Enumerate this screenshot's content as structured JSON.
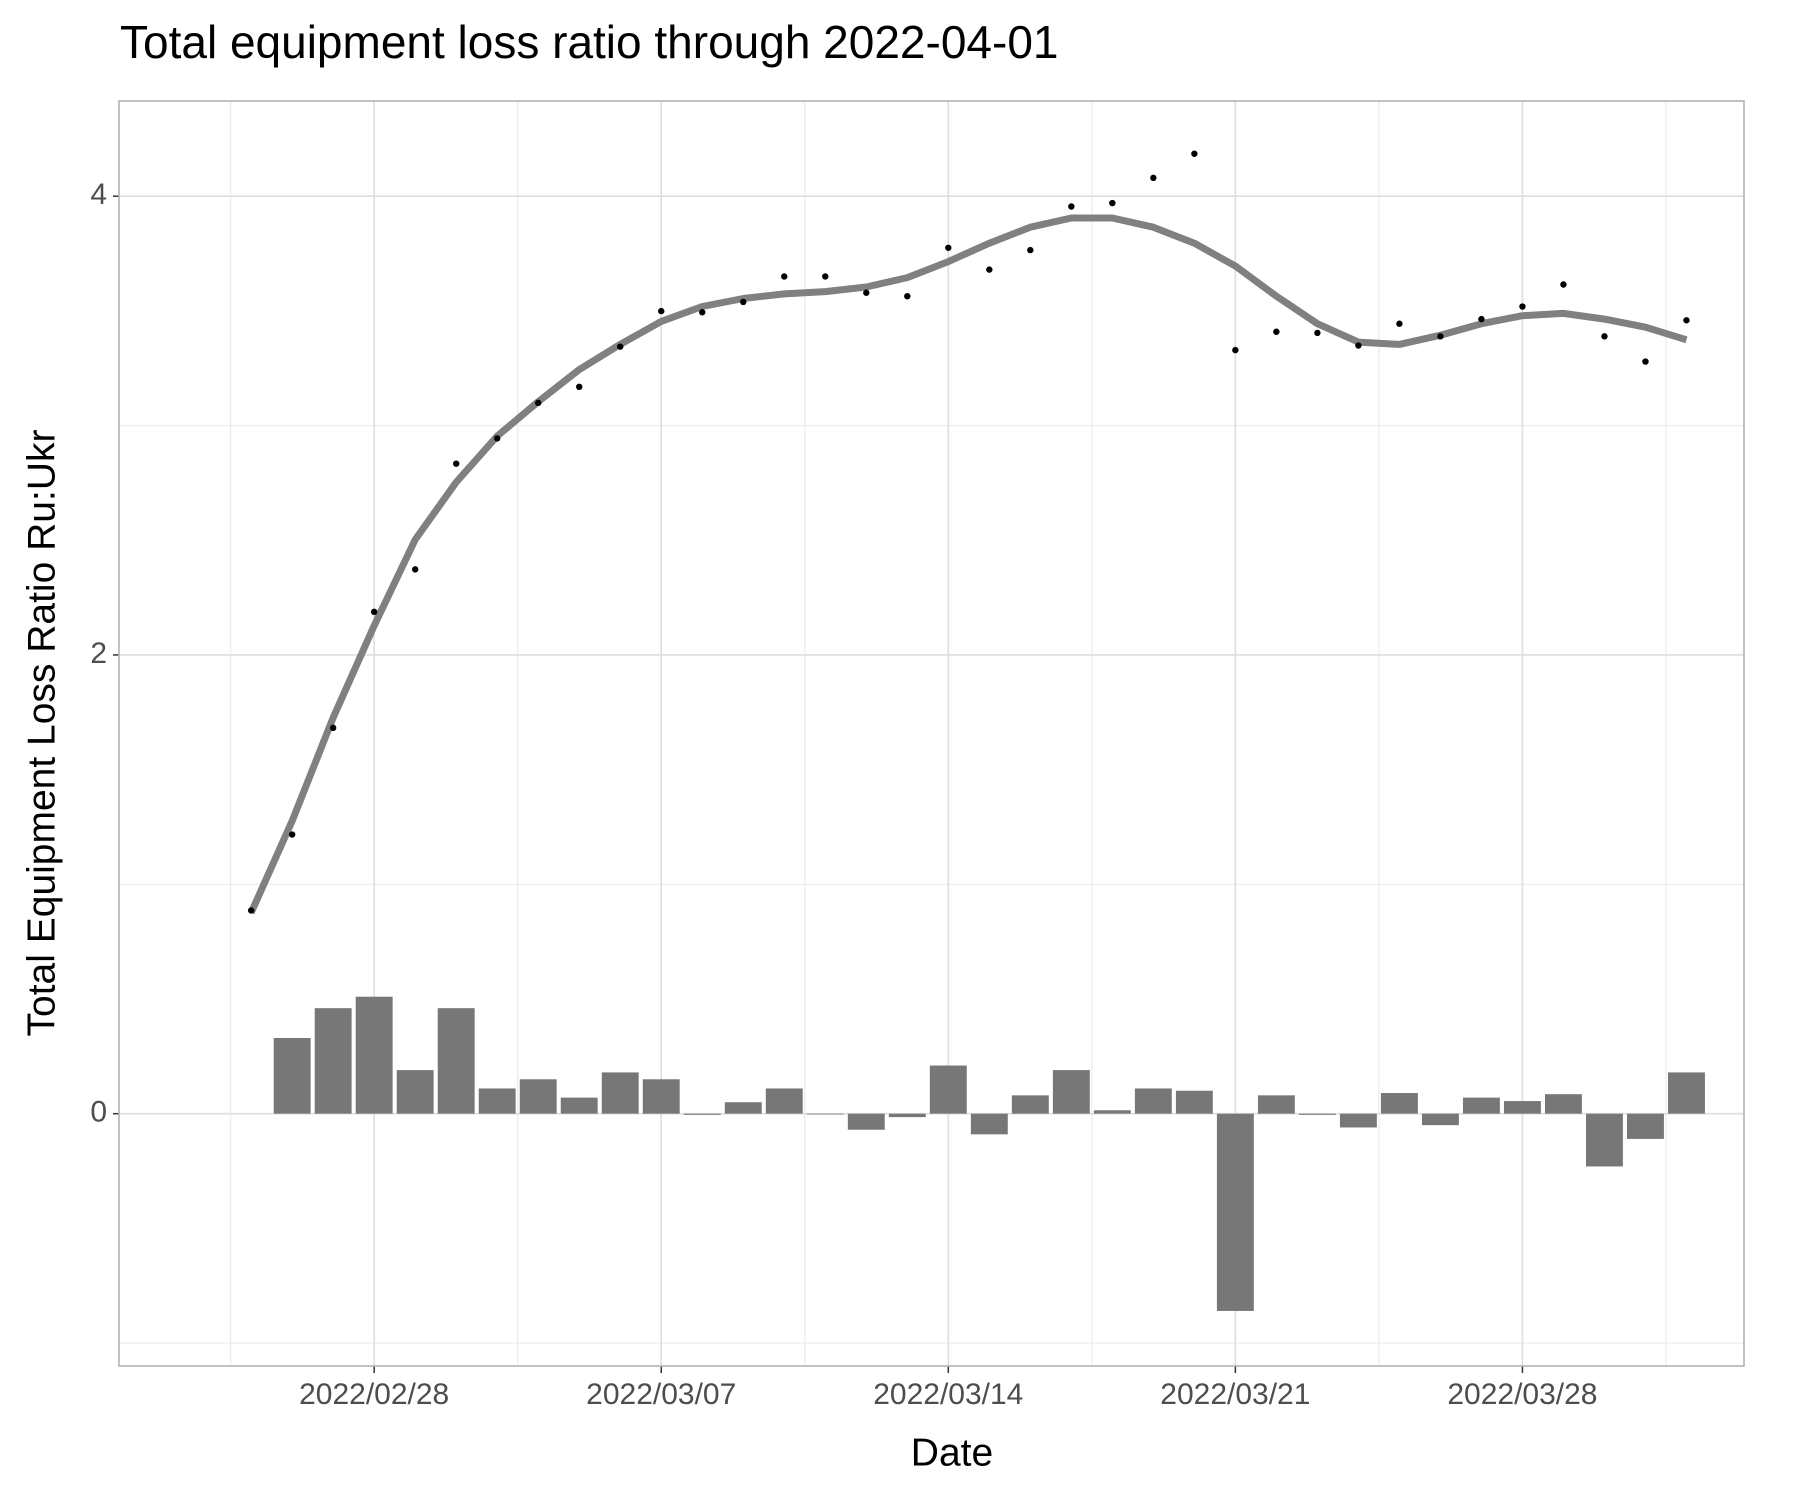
{
  "chart_data": {
    "type": "combo",
    "title": "Total equipment loss ratio through 2022-04-01",
    "x_label": "Date",
    "y_label": "Total Equipment Loss Ratio Ru:Ukr",
    "x": [
      "2022-02-25",
      "2022-02-26",
      "2022-02-27",
      "2022-02-28",
      "2022-03-01",
      "2022-03-02",
      "2022-03-03",
      "2022-03-04",
      "2022-03-05",
      "2022-03-06",
      "2022-03-07",
      "2022-03-08",
      "2022-03-09",
      "2022-03-10",
      "2022-03-11",
      "2022-03-12",
      "2022-03-13",
      "2022-03-14",
      "2022-03-15",
      "2022-03-16",
      "2022-03-17",
      "2022-03-18",
      "2022-03-19",
      "2022-03-20",
      "2022-03-21",
      "2022-03-22",
      "2022-03-23",
      "2022-03-24",
      "2022-03-25",
      "2022-03-26",
      "2022-03-27",
      "2022-03-28",
      "2022-03-29",
      "2022-03-30",
      "2022-03-31",
      "2022-04-01"
    ],
    "values": [
      0.886,
      1.217,
      1.682,
      2.188,
      2.373,
      2.834,
      2.944,
      3.099,
      3.169,
      3.344,
      3.499,
      3.494,
      3.539,
      3.65,
      3.65,
      3.579,
      3.564,
      3.775,
      3.68,
      3.765,
      3.955,
      3.97,
      4.08,
      4.185,
      3.329,
      3.409,
      3.404,
      3.349,
      3.444,
      3.389,
      3.464,
      3.519,
      3.615,
      3.389,
      3.279,
      3.459
    ],
    "change_values": [
      null,
      0.33,
      0.46,
      0.51,
      0.19,
      0.46,
      0.11,
      0.15,
      0.07,
      0.18,
      0.15,
      -0.005,
      0.05,
      0.11,
      0,
      -0.07,
      -0.015,
      0.21,
      -0.09,
      0.08,
      0.19,
      0.015,
      0.11,
      0.1,
      -0.86,
      0.08,
      -0.005,
      -0.06,
      0.09,
      -0.05,
      0.07,
      0.055,
      0.085,
      -0.23,
      -0.11,
      0.18
    ],
    "trend_values": [
      0.876,
      1.277,
      1.727,
      2.128,
      2.503,
      2.753,
      2.954,
      3.104,
      3.244,
      3.354,
      3.454,
      3.519,
      3.554,
      3.574,
      3.584,
      3.604,
      3.645,
      3.715,
      3.795,
      3.865,
      3.905,
      3.905,
      3.865,
      3.795,
      3.695,
      3.564,
      3.444,
      3.364,
      3.354,
      3.394,
      3.444,
      3.479,
      3.489,
      3.464,
      3.429,
      3.374
    ],
    "point_color": "#000000",
    "bar_color": "#777777",
    "trend_color": "#808080",
    "xlim": [
      "2022-02-21T18:40",
      "2022-04-02T09:40"
    ],
    "xticks": [
      {
        "value": "2022-02-28",
        "label": "2022/02/28"
      },
      {
        "value": "2022-03-07",
        "label": "2022/03/07"
      },
      {
        "value": "2022-03-14",
        "label": "2022/03/14"
      },
      {
        "value": "2022-03-21",
        "label": "2022/03/21"
      },
      {
        "value": "2022-03-28",
        "label": "2022/03/28"
      }
    ],
    "minor_xticks": [
      "2022-02-24T12:00",
      "2022-03-03T12:00",
      "2022-03-10T12:00",
      "2022-03-17T12:00",
      "2022-03-24T12:00",
      "2022-03-31T12:00"
    ],
    "ylim": [
      -1.1,
      4.415
    ],
    "yticks": [
      0,
      2,
      4
    ],
    "minor_yticks": [
      -1,
      1,
      3
    ],
    "grid": true
  }
}
